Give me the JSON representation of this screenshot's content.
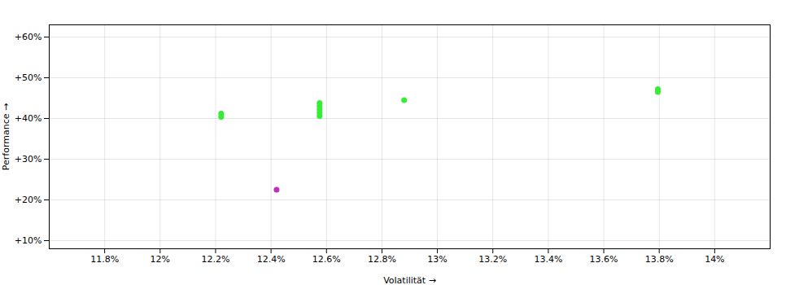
{
  "chart_data": {
    "type": "scatter",
    "xlabel": "Volatilität",
    "ylabel": "Performance",
    "xlim": [
      11.6,
      14.2
    ],
    "ylim": [
      8,
      63
    ],
    "xticks": [
      {
        "value": 11.8,
        "label": "11.8%"
      },
      {
        "value": 12.0,
        "label": "12%"
      },
      {
        "value": 12.2,
        "label": "12.2%"
      },
      {
        "value": 12.4,
        "label": "12.4%"
      },
      {
        "value": 12.6,
        "label": "12.6%"
      },
      {
        "value": 12.8,
        "label": "12.8%"
      },
      {
        "value": 13.0,
        "label": "13%"
      },
      {
        "value": 13.2,
        "label": "13.2%"
      },
      {
        "value": 13.4,
        "label": "13.4%"
      },
      {
        "value": 13.6,
        "label": "13.6%"
      },
      {
        "value": 13.8,
        "label": "13.8%"
      },
      {
        "value": 14.0,
        "label": "14%"
      }
    ],
    "yticks": [
      {
        "value": 10,
        "label": "+10%"
      },
      {
        "value": 20,
        "label": "+20%"
      },
      {
        "value": 30,
        "label": "+30%"
      },
      {
        "value": 40,
        "label": "+40%"
      },
      {
        "value": 50,
        "label": "+50%"
      },
      {
        "value": 60,
        "label": "+60%"
      }
    ],
    "grid": true,
    "series": [
      {
        "color": "#33ee33",
        "x": [
          12.22,
          12.22,
          12.575,
          12.575,
          12.575,
          12.575,
          12.575,
          12.88,
          13.795,
          13.795
        ],
        "values": [
          41.2,
          40.4,
          43.8,
          43.0,
          42.2,
          41.4,
          40.6,
          44.5,
          47.2,
          46.5
        ]
      },
      {
        "color": "#bb33bb",
        "x": [
          12.42
        ],
        "values": [
          22.5
        ]
      }
    ]
  }
}
